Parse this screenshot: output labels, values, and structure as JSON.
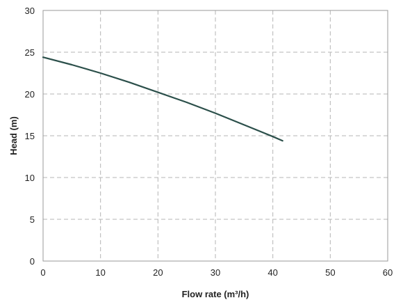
{
  "chart_data": {
    "type": "line",
    "title": "",
    "xlabel": "Flow rate (m³/h)",
    "ylabel": "Head (m)",
    "xlim": [
      0,
      60
    ],
    "ylim": [
      0,
      30
    ],
    "xticks": [
      0,
      10,
      20,
      30,
      40,
      50,
      60
    ],
    "yticks": [
      0,
      5,
      10,
      15,
      20,
      25,
      30
    ],
    "grid": true,
    "legend": "none",
    "colors": {
      "line": "#2b4f4a",
      "grid": "#b5b5b5"
    },
    "series": [
      {
        "x": [
          0,
          5,
          10,
          15,
          20,
          25,
          30,
          35,
          40,
          41.7
        ],
        "values": [
          24.4,
          23.5,
          22.5,
          21.4,
          20.2,
          19.0,
          17.7,
          16.3,
          14.9,
          14.4
        ]
      }
    ]
  }
}
